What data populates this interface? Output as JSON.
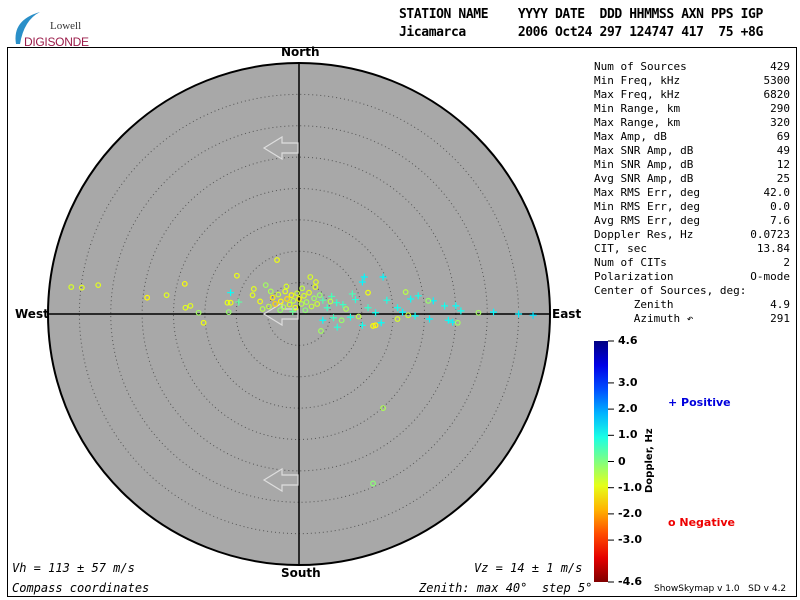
{
  "logo": {
    "line1": "Lowell",
    "line2": "DIGISONDE"
  },
  "header": {
    "row1": "STATION NAME    YYYY DATE  DDD HHMMSS AXN PPS IGP",
    "row2": "Jicamarca       2006 Oct24 297 124747 417  75 +8G"
  },
  "stats": [
    {
      "label": "Num of Sources",
      "value": "429"
    },
    {
      "label": "Min Freq, kHz",
      "value": "5300"
    },
    {
      "label": "Max Freq, kHz",
      "value": "6820"
    },
    {
      "label": "Min Range, km",
      "value": "290"
    },
    {
      "label": "Max Range, km",
      "value": "320"
    },
    {
      "label": "Max Amp, dB",
      "value": "69"
    },
    {
      "label": "Max SNR Amp, dB",
      "value": "49"
    },
    {
      "label": "Min SNR Amp, dB",
      "value": "12"
    },
    {
      "label": "Avg SNR Amp, dB",
      "value": "25"
    },
    {
      "label": "Max RMS Err, deg",
      "value": "42.0"
    },
    {
      "label": "Min RMS Err, deg",
      "value": "0.0"
    },
    {
      "label": "Avg RMS Err, deg",
      "value": "7.6"
    },
    {
      "label": "Doppler Res, Hz",
      "value": "0.0723"
    },
    {
      "label": "CIT, sec",
      "value": "13.84"
    },
    {
      "label": "Num of CITs",
      "value": "2"
    },
    {
      "label": "Polarization",
      "value": "O-mode"
    },
    {
      "label": "Center of Sources, deg:",
      "value": ""
    },
    {
      "label": "      Zenith",
      "value": "4.9"
    },
    {
      "label": "      Azimuth ↶",
      "value": "291"
    }
  ],
  "compass": {
    "north": "North",
    "south": "South",
    "east": "East",
    "west": "West"
  },
  "footer": {
    "vh": "Vh = 113 ± 57 m/s",
    "vz": "Vz = 14 ± 1 m/s",
    "coords": "Compass coordinates",
    "zenith": "Zenith: max 40°  step 5°",
    "version": "ShowSkymap v 1.0   SD v 4.2"
  },
  "colors": {
    "plot_bg": "#a8a8a8",
    "positive": "#0000dd",
    "negative": "#ee0000"
  },
  "chart_data": {
    "type": "scatter",
    "projection": "polar skymap, compass coordinates",
    "zenith_max_deg": 40,
    "zenith_step_deg": 5,
    "colorbar": {
      "label": "Doppler, Hz",
      "min": -4.6,
      "max": 4.6,
      "colormap": "jet",
      "ticks": [
        "4.6",
        "3.0",
        "2.0",
        "1.0",
        "0",
        "-1.0",
        "-2.0",
        "-3.0",
        "-4.6"
      ],
      "tick_values": [
        4.6,
        3.0,
        2.0,
        1.0,
        0,
        -1.0,
        -2.0,
        -3.0,
        -4.6
      ]
    },
    "legend": [
      {
        "symbol": "+",
        "label": "Positive"
      },
      {
        "symbol": "o",
        "label": "Negative"
      }
    ],
    "point_fields": [
      "east_deg",
      "north_deg",
      "doppler_hz"
    ],
    "points": [
      [
        -36.3,
        4.3,
        -0.8
      ],
      [
        -34.6,
        4.2,
        -0.9
      ],
      [
        -32.0,
        4.6,
        -0.9
      ],
      [
        -24.2,
        2.6,
        -1.2
      ],
      [
        -21.1,
        3.0,
        -0.9
      ],
      [
        -18.2,
        4.8,
        -1.1
      ],
      [
        -18.1,
        1.0,
        -0.9
      ],
      [
        -17.3,
        1.3,
        -0.9
      ],
      [
        -16.0,
        0.2,
        -0.3
      ],
      [
        -15.2,
        -1.4,
        -1.0
      ],
      [
        -11.4,
        1.8,
        -0.9
      ],
      [
        -10.9,
        1.8,
        -1.0
      ],
      [
        -9.9,
        6.1,
        -1.0
      ],
      [
        -9.6,
        1.9,
        0.3
      ],
      [
        -11.2,
        0.3,
        -0.2
      ],
      [
        -10.9,
        3.4,
        1.1
      ],
      [
        -7.2,
        4.0,
        -0.9
      ],
      [
        -7.4,
        3.0,
        -0.9
      ],
      [
        -5.3,
        4.6,
        -0.3
      ],
      [
        -3.5,
        8.6,
        -1.0
      ],
      [
        -4.8,
        1.2,
        -0.6
      ],
      [
        -4.2,
        2.6,
        -1.3
      ],
      [
        -3.8,
        1.6,
        -1.5
      ],
      [
        -3.3,
        3.1,
        -0.7
      ],
      [
        -2.9,
        2.0,
        -1.2
      ],
      [
        -2.5,
        1.1,
        -0.5
      ],
      [
        -2.2,
        3.6,
        -0.9
      ],
      [
        -1.9,
        2.4,
        -1.4
      ],
      [
        -1.5,
        1.5,
        -0.8
      ],
      [
        -1.2,
        3.0,
        -1.1
      ],
      [
        -0.9,
        2.1,
        -0.6
      ],
      [
        -0.6,
        1.0,
        -1.0
      ],
      [
        -0.3,
        3.3,
        -0.7
      ],
      [
        0.0,
        2.4,
        -1.2
      ],
      [
        0.4,
        1.6,
        -0.5
      ],
      [
        0.8,
        2.9,
        -0.8
      ],
      [
        1.2,
        1.9,
        -0.4
      ],
      [
        1.6,
        3.4,
        -0.9
      ],
      [
        2.0,
        1.2,
        -0.6
      ],
      [
        2.4,
        2.5,
        -0.3
      ],
      [
        2.9,
        1.6,
        -0.7
      ],
      [
        3.3,
        3.0,
        -0.2
      ],
      [
        -4.5,
        3.6,
        -0.4
      ],
      [
        -3.0,
        0.6,
        -0.2
      ],
      [
        -1.0,
        0.4,
        0.2
      ],
      [
        1.0,
        0.6,
        -0.1
      ],
      [
        3.8,
        2.2,
        0.4
      ],
      [
        4.5,
        1.0,
        0.6
      ],
      [
        5.2,
        2.8,
        0.5
      ],
      [
        6.0,
        1.8,
        0.7
      ],
      [
        -6.2,
        2.0,
        -1.0
      ],
      [
        -5.8,
        0.8,
        -0.5
      ],
      [
        -2.0,
        4.4,
        -0.8
      ],
      [
        0.5,
        4.1,
        -0.6
      ],
      [
        2.6,
        4.3,
        -0.9
      ],
      [
        10.4,
        5.9,
        1.2
      ],
      [
        13.4,
        5.9,
        1.2
      ],
      [
        10.1,
        5.1,
        1.2
      ],
      [
        31.0,
        0.3,
        1.2
      ],
      [
        35.0,
        0.0,
        1.3
      ],
      [
        37.3,
        -0.2,
        1.4
      ],
      [
        20.8,
        -0.8,
        1.2
      ],
      [
        23.8,
        -1.0,
        1.1
      ],
      [
        24.5,
        -1.3,
        1.2
      ],
      [
        25.8,
        0.5,
        1.0
      ],
      [
        23.2,
        1.3,
        1.0
      ],
      [
        25.0,
        1.3,
        1.1
      ],
      [
        21.4,
        2.1,
        1.2
      ],
      [
        19.0,
        2.9,
        1.0
      ],
      [
        17.8,
        2.4,
        1.1
      ],
      [
        15.7,
        1.0,
        1.0
      ],
      [
        13.1,
        -1.4,
        1.1
      ],
      [
        10.1,
        -1.8,
        1.0
      ],
      [
        6.1,
        -2.1,
        0.8
      ],
      [
        3.8,
        -1.0,
        1.1
      ],
      [
        8.2,
        -0.5,
        0.9
      ],
      [
        12.2,
        0.2,
        1.0
      ],
      [
        7.0,
        1.5,
        0.6
      ],
      [
        9.0,
        2.3,
        0.8
      ],
      [
        11.0,
        1.0,
        0.7
      ],
      [
        14.0,
        2.2,
        0.9
      ],
      [
        16.5,
        0.3,
        1.2
      ],
      [
        18.5,
        -0.3,
        1.1
      ],
      [
        8.5,
        3.2,
        0.5
      ],
      [
        5.5,
        -0.6,
        0.6
      ],
      [
        28.6,
        0.2,
        -0.3
      ],
      [
        25.3,
        -1.4,
        -0.3
      ],
      [
        20.6,
        2.1,
        -0.2
      ],
      [
        17.0,
        3.5,
        -0.5
      ],
      [
        15.7,
        -0.8,
        -0.8
      ],
      [
        17.4,
        -0.2,
        -0.7
      ],
      [
        11.8,
        -1.9,
        -1.1
      ],
      [
        3.5,
        -2.7,
        -0.3
      ],
      [
        11.0,
        3.4,
        -1.0
      ],
      [
        1.8,
        5.9,
        -0.8
      ],
      [
        2.7,
        5.1,
        -0.9
      ],
      [
        13.4,
        -15.0,
        -0.4
      ],
      [
        11.8,
        -27.0,
        -0.1
      ],
      [
        12.2,
        -1.8,
        -1.2
      ],
      [
        7.5,
        0.8,
        -0.4
      ],
      [
        9.5,
        -0.4,
        -0.6
      ],
      [
        5.0,
        2.0,
        -0.5
      ],
      [
        6.8,
        -1.0,
        -0.2
      ]
    ]
  }
}
